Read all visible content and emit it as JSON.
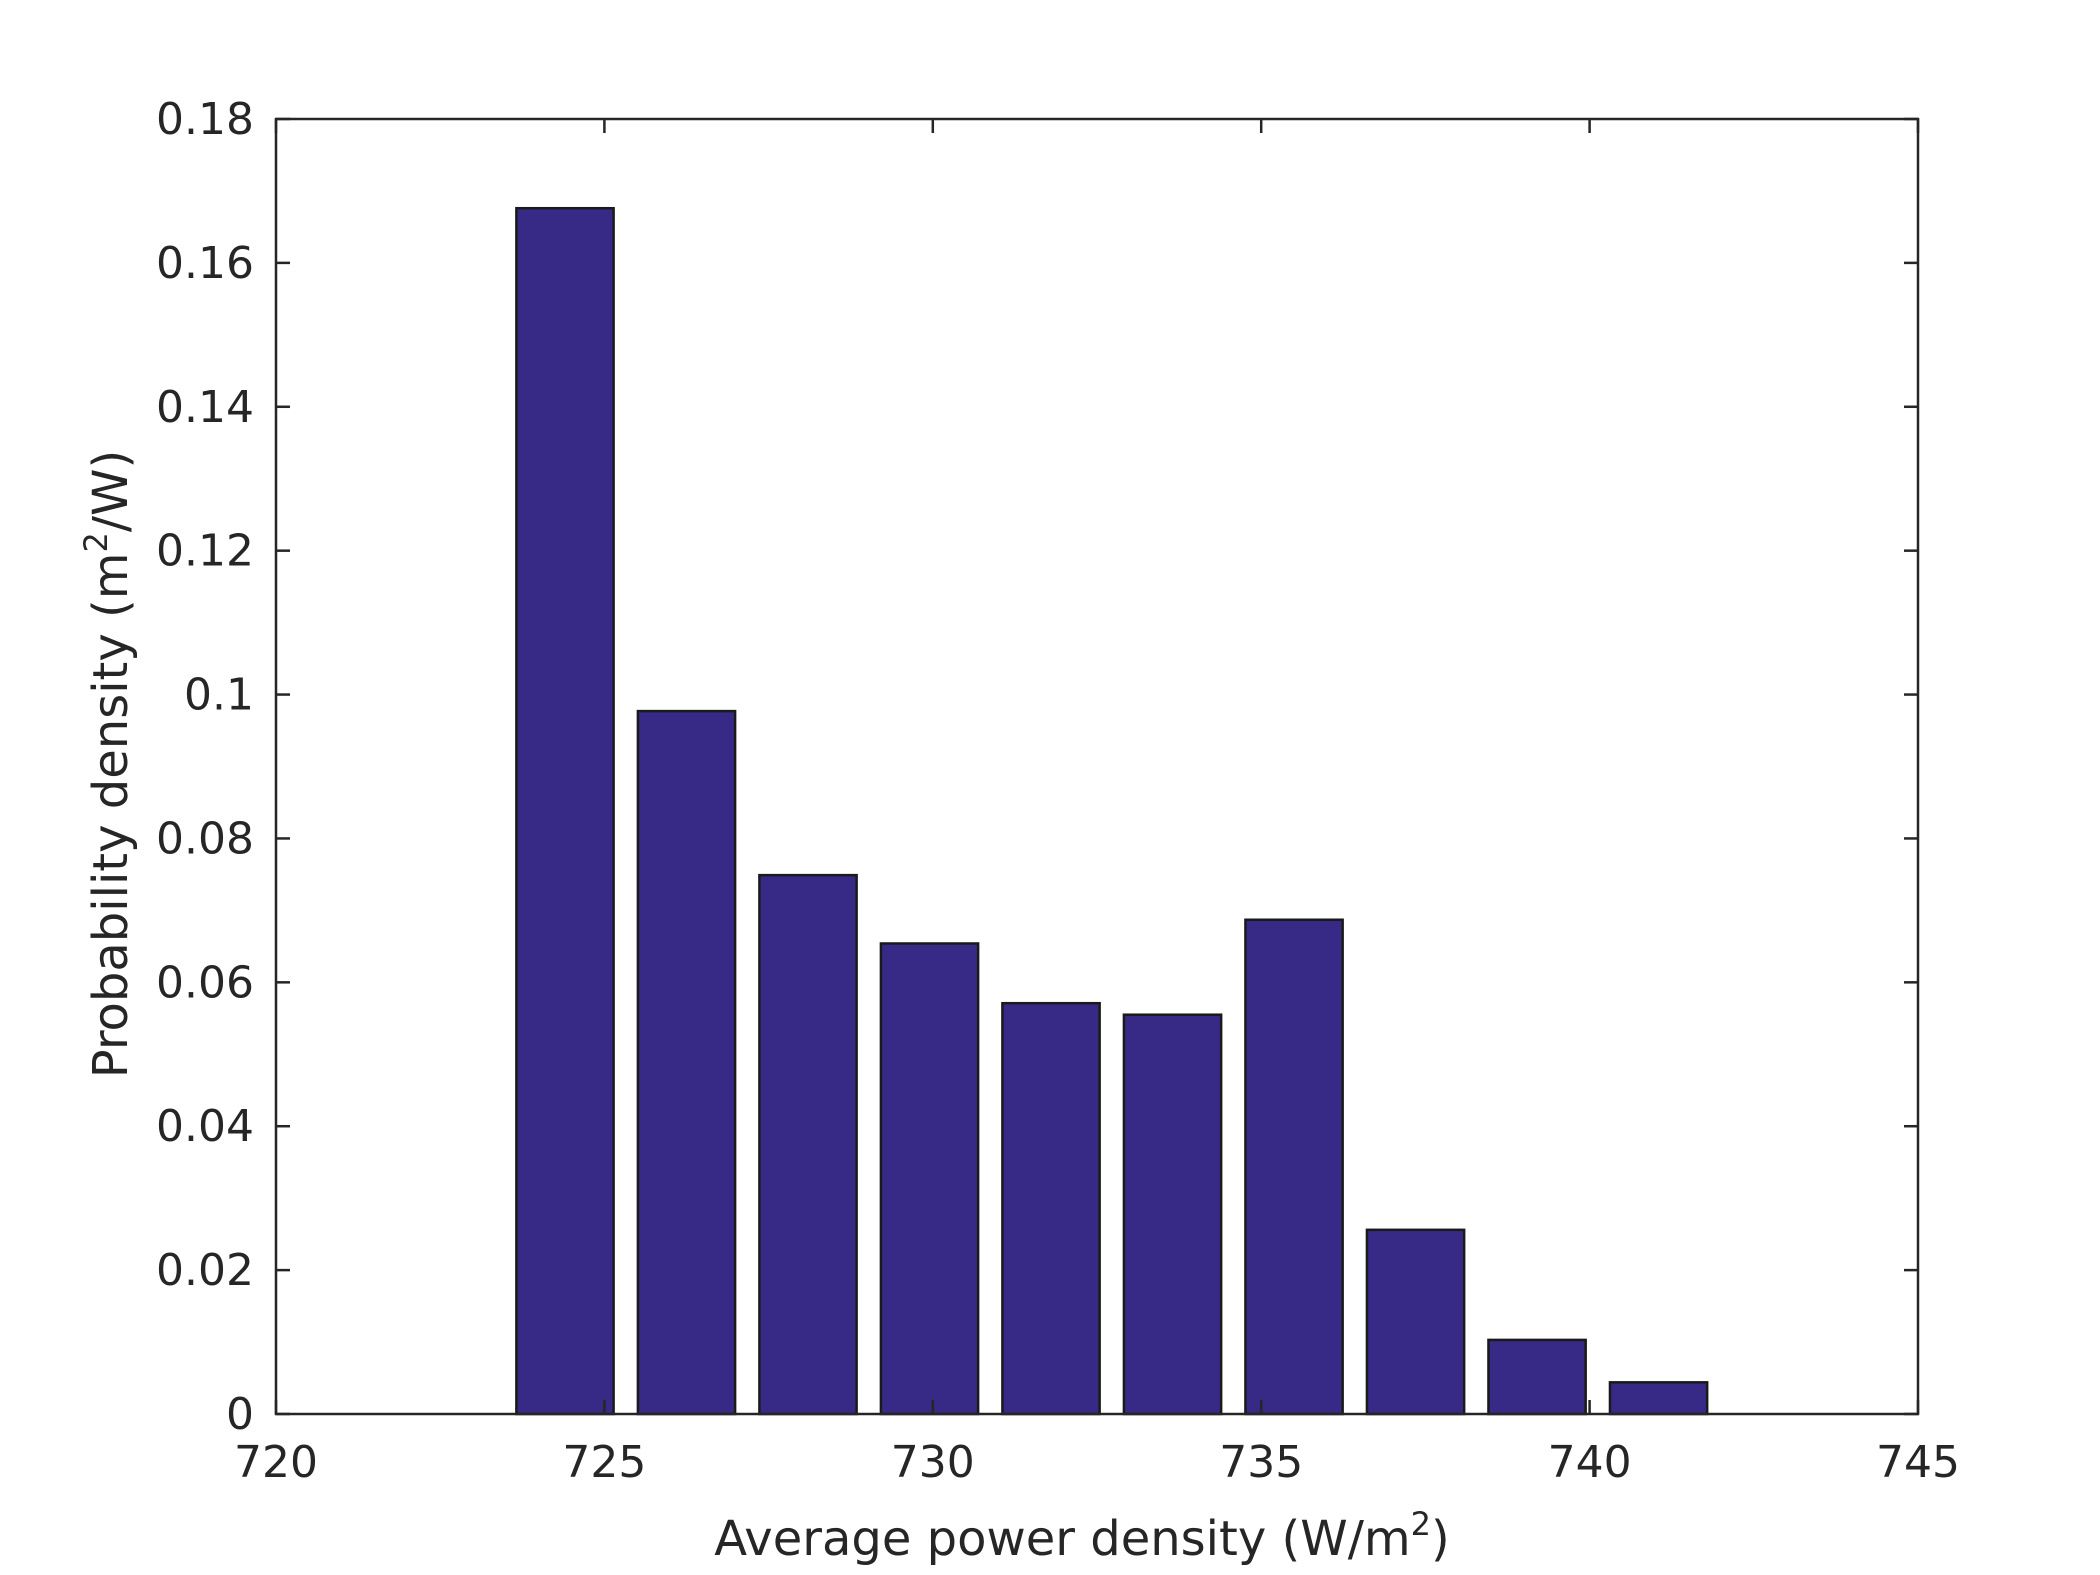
{
  "chart_data": {
    "type": "bar",
    "title": "",
    "xlabel_main": "Average power density (W/m",
    "xlabel_sup": "2",
    "xlabel_end": ")",
    "ylabel_main": "Probability density (m",
    "ylabel_sup": "2",
    "ylabel_end": "/W)",
    "xlim": [
      720,
      745
    ],
    "ylim": [
      0,
      0.18
    ],
    "x_ticks": [
      720,
      725,
      730,
      735,
      740,
      745
    ],
    "y_ticks": [
      0,
      0.02,
      0.04,
      0.06,
      0.08,
      0.1,
      0.12,
      0.14,
      0.16,
      0.18
    ],
    "x_tick_labels": [
      "720",
      "725",
      "730",
      "735",
      "740",
      "745"
    ],
    "y_tick_labels": [
      "0",
      "0.02",
      "0.04",
      "0.06",
      "0.08",
      "0.1",
      "0.12",
      "0.14",
      "0.16",
      "0.18"
    ],
    "bin_width": 1.85,
    "bar_relative_width": 0.8,
    "x": [
      724.4,
      726.25,
      728.1,
      729.95,
      731.8,
      733.65,
      735.5,
      737.35,
      739.2,
      741.05
    ],
    "values": [
      0.1676,
      0.0977,
      0.0749,
      0.0654,
      0.0571,
      0.0555,
      0.0687,
      0.0256,
      0.0103,
      0.0044
    ],
    "bar_color": "#372a86",
    "edge_color": "#1a1a1a",
    "grid": false
  }
}
